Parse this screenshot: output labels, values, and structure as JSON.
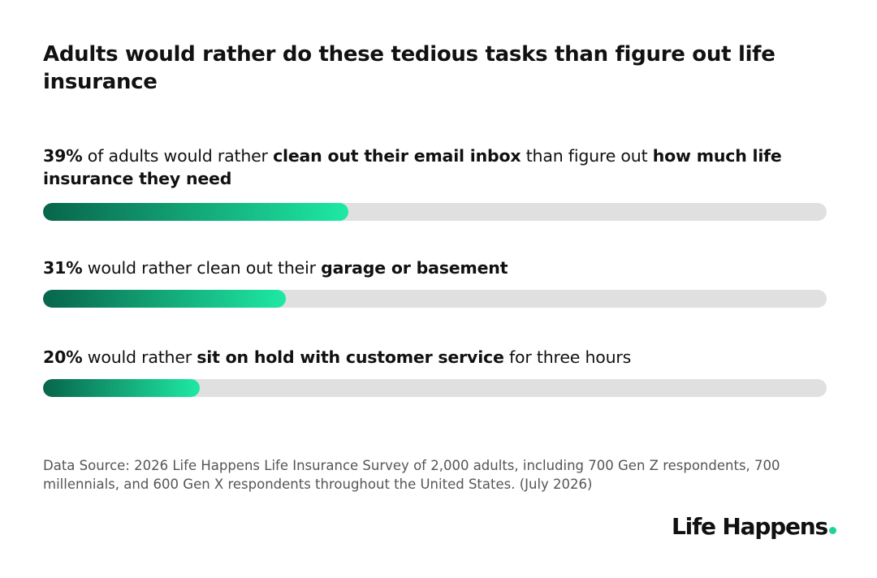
{
  "chart_data": {
    "type": "bar",
    "title": "Adults would rather do these tedious tasks than figure out life insurance",
    "values": [
      39,
      31,
      20
    ],
    "value_labels": [
      "39%",
      "31%",
      "20%"
    ],
    "descriptions": [
      [
        {
          "text": " of adults would rather ",
          "bold": false
        },
        {
          "text": "clean out their email inbox",
          "bold": true
        },
        {
          "text": " than figure out ",
          "bold": false
        },
        {
          "text": "how much life insurance they need",
          "bold": true
        }
      ],
      [
        {
          "text": " would rather clean out their ",
          "bold": false
        },
        {
          "text": "garage or basement",
          "bold": true
        }
      ],
      [
        {
          "text": " would rather ",
          "bold": false
        },
        {
          "text": "sit on hold with customer service",
          "bold": true
        },
        {
          "text": " for three hours",
          "bold": false
        }
      ]
    ],
    "xlim": [
      0,
      100
    ],
    "gradient": [
      "#08654b",
      "#1ee9a4"
    ],
    "track_color": "#e0e0e0",
    "source": "Data Source: 2026 Life Happens Life Insurance Survey of 2,000 adults, including 700 Gen Z respondents, 700 millennials, and 600 Gen X respondents throughout the United States. (July 2026)",
    "logo": "Life Happens"
  }
}
